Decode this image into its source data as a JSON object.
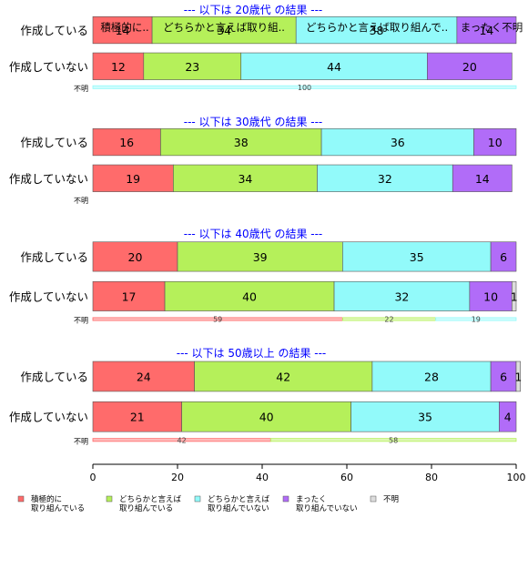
{
  "top_labels": [
    "積極的に..",
    "どちらかと言えば取り組..",
    "どちらかと言えば取り組んで..",
    "まったく不明"
  ],
  "colors": {
    "category_colors": [
      "#ff6b6b",
      "#b5f05a",
      "#92fafa",
      "#b16cf8",
      "#dddddd"
    ],
    "title_color": "#0000ff"
  },
  "chart_data": {
    "type": "stacked-bar-horizontal",
    "xlim": [
      0,
      100
    ],
    "x_ticks": [
      0,
      20,
      40,
      60,
      80,
      100
    ],
    "legend_position": "bottom-left",
    "legend": [
      "積極的に\n取り組んでいる",
      "どちらかと言えば\n取り組んでいる",
      "どちらかと言えば\n取り組んでいない",
      "まったく\n取り組んでいない",
      "不明"
    ],
    "panels": [
      {
        "title": "--- 以下は 20歳代 の結果 ---",
        "rows": [
          {
            "label": "作成している",
            "values": [
              14,
              34,
              38,
              14,
              0
            ]
          },
          {
            "label": "作成していない",
            "values": [
              12,
              23,
              44,
              20,
              0
            ]
          }
        ],
        "unknown": {
          "label": "不明",
          "values": [
            0,
            0,
            100,
            0,
            0
          ]
        }
      },
      {
        "title": "--- 以下は 30歳代 の結果 ---",
        "rows": [
          {
            "label": "作成している",
            "values": [
              16,
              38,
              36,
              10,
              0
            ]
          },
          {
            "label": "作成していない",
            "values": [
              19,
              34,
              32,
              14,
              0
            ]
          }
        ],
        "unknown": {
          "label": "不明",
          "values": [
            0,
            0,
            0,
            0,
            0
          ]
        }
      },
      {
        "title": "--- 以下は 40歳代 の結果 ---",
        "rows": [
          {
            "label": "作成している",
            "values": [
              20,
              39,
              35,
              6,
              0
            ]
          },
          {
            "label": "作成していない",
            "values": [
              17,
              40,
              32,
              10,
              1
            ]
          }
        ],
        "unknown": {
          "label": "不明",
          "values": [
            59,
            22,
            19,
            0,
            0
          ]
        }
      },
      {
        "title": "--- 以下は 50歳以上 の結果 ---",
        "rows": [
          {
            "label": "作成している",
            "values": [
              24,
              42,
              28,
              6,
              1
            ]
          },
          {
            "label": "作成していない",
            "values": [
              21,
              40,
              35,
              4,
              0
            ]
          }
        ],
        "unknown": {
          "label": "不明",
          "values": [
            42,
            58,
            0,
            0,
            0
          ]
        }
      }
    ]
  }
}
